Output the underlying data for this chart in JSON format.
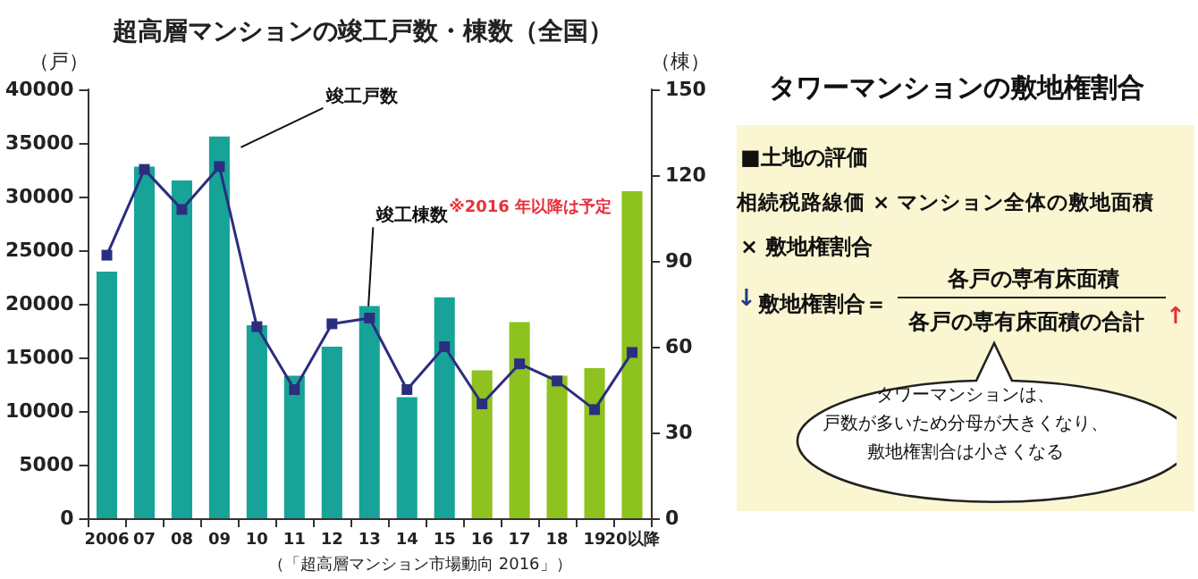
{
  "chart_data": [
    {
      "type": "bar",
      "title": "超高層マンションの竣工戸数・棟数（全国）",
      "ylabel": "（戸）",
      "y2label": "（棟）",
      "categories": [
        "2006",
        "07",
        "08",
        "09",
        "10",
        "11",
        "12",
        "13",
        "14",
        "15",
        "16",
        "17",
        "18",
        "19",
        "20以降"
      ],
      "series": [
        {
          "name": "竣工戸数",
          "type": "bar",
          "colors": [
            "#17a398",
            "#17a398",
            "#17a398",
            "#17a398",
            "#17a398",
            "#17a398",
            "#17a398",
            "#17a398",
            "#17a398",
            "#17a398",
            "#8dc21f",
            "#8dc21f",
            "#8dc21f",
            "#8dc21f",
            "#8dc21f"
          ],
          "values": [
            23000,
            32800,
            31500,
            35600,
            18000,
            13300,
            16000,
            19800,
            11300,
            20600,
            13800,
            18300,
            13300,
            14000,
            30500
          ]
        },
        {
          "name": "竣工棟数",
          "type": "line",
          "axis": "y2",
          "color": "#2b2e7e",
          "marker": "square",
          "values": [
            92,
            122,
            108,
            123,
            67,
            45,
            68,
            70,
            45,
            60,
            40,
            54,
            48,
            38,
            58
          ]
        }
      ],
      "ylim": [
        0,
        40000
      ],
      "yticks": [
        0,
        5000,
        10000,
        15000,
        20000,
        25000,
        30000,
        35000,
        40000
      ],
      "y2lim": [
        0,
        150
      ],
      "y2ticks": [
        0,
        30,
        60,
        90,
        120,
        150
      ],
      "grid": false,
      "legend": false,
      "annotations": [
        "※2016 年以降は予定",
        "（「超高層マンション市場動向 2016」）"
      ]
    },
    {
      "type": "other",
      "title": "タワーマンションの敷地権割合",
      "annotations": [
        "■土地の評価",
        "相続税路線価 × マンション全体の敷地面積",
        "× 敷地権割合",
        "↓",
        "敷地権割合＝",
        "各戸の専有床面積",
        "各戸の専有床面積の合計",
        "↑",
        "タワーマンションは、",
        "戸数が多いため分母が大きくなり、",
        "敷地権割合は小さくなる"
      ]
    }
  ]
}
